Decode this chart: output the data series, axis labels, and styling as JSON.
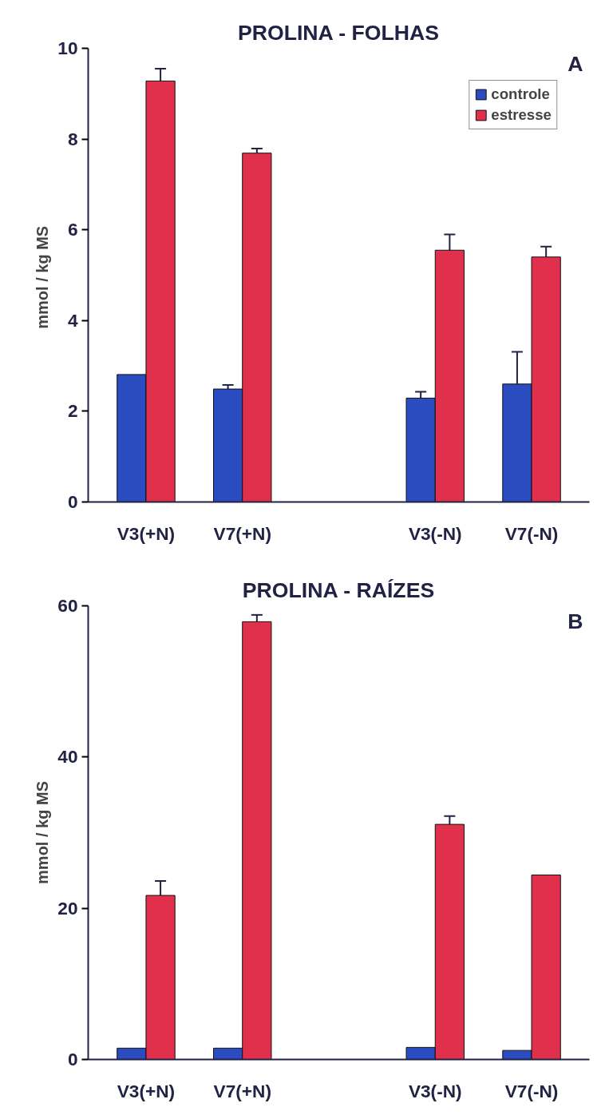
{
  "chart_data": [
    {
      "type": "bar",
      "title": "PROLINA - FOLHAS",
      "ylabel": "mmol  / kg MS",
      "annotations": [
        "A"
      ],
      "categories": [
        "V3(+N)",
        "V7(+N)",
        null,
        "V3(-N)",
        "V7(-N)"
      ],
      "series": [
        {
          "name": "controle",
          "color": "#2a4cc0",
          "values": [
            2.81,
            2.49,
            null,
            2.29,
            2.6
          ],
          "errors": [
            null,
            [
              2.49,
              2.58
            ],
            null,
            [
              2.29,
              2.43
            ],
            [
              2.6,
              3.31
            ]
          ]
        },
        {
          "name": "estresse",
          "color": "#e0304c",
          "values": [
            9.28,
            7.69,
            null,
            5.55,
            5.4
          ],
          "errors": [
            [
              9.28,
              9.55
            ],
            [
              7.69,
              7.79
            ],
            null,
            [
              5.55,
              5.9
            ],
            [
              5.4,
              5.63
            ]
          ]
        }
      ],
      "ylim": [
        0,
        10
      ],
      "yticks": [
        0,
        2,
        4,
        6,
        8,
        10
      ],
      "grid": false,
      "legend": "top right"
    },
    {
      "type": "bar",
      "title": "PROLINA - RAÍZES",
      "ylabel": "mmol / kg MS",
      "annotations": [
        "B"
      ],
      "categories": [
        "V3(+N)",
        "V7(+N)",
        null,
        "V3(-N)",
        "V7(-N)"
      ],
      "series": [
        {
          "color": "#2a4cc0",
          "values": [
            1.5,
            1.5,
            null,
            1.6,
            1.2
          ]
        },
        {
          "color": "#e0304c",
          "values": [
            21.7,
            57.9,
            null,
            31.1,
            24.4
          ],
          "errors": [
            [
              21.7,
              23.6
            ],
            [
              57.9,
              58.8
            ],
            null,
            [
              31.1,
              32.2
            ],
            null
          ]
        }
      ],
      "ylim": [
        0,
        60
      ],
      "yticks": [
        0,
        20,
        40,
        60
      ],
      "grid": false,
      "legend": false
    }
  ]
}
